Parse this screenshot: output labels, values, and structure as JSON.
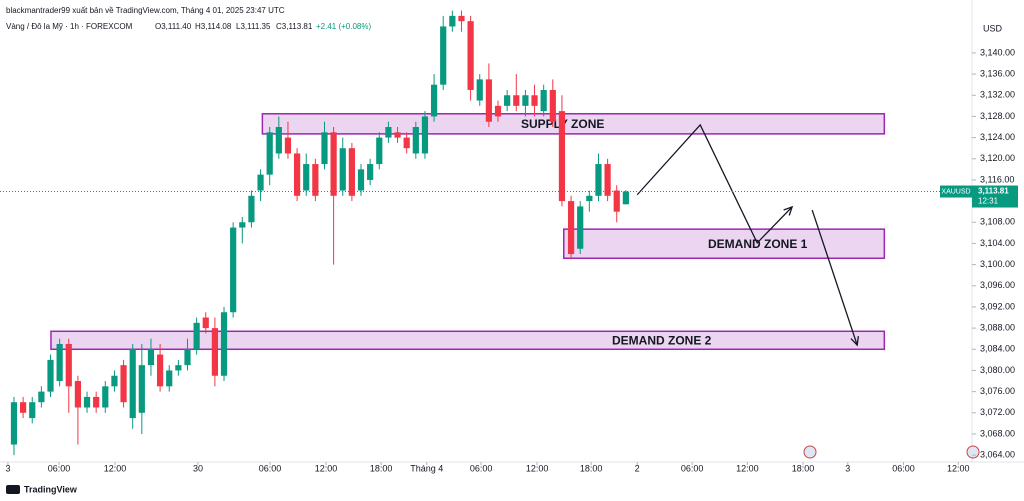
{
  "chart_data": {
    "type": "candlestick",
    "credit": "blackmantrader99 xuất bản về TradingView.com, Tháng 4 01, 2025 23:47 UTC",
    "symbol_title": "Vàng / Đô la Mỹ · 1h · FOREXCOM",
    "ohlc_labels": [
      "O3,111.40",
      "H3,114.08",
      "L3,111.35",
      "C3,113.81"
    ],
    "change_label": "+2.41 (+0.08%)",
    "currency": "USD",
    "brand": "TradingView",
    "symbol_label": "XAUUSD",
    "last": 3113.81,
    "last_label": "3,113.81",
    "countdown": "12:31",
    "up_color": "#089981",
    "down_color": "#f23645",
    "candles": [
      [
        3066,
        3075,
        3064,
        3074
      ],
      [
        3074,
        3075,
        3071,
        3072
      ],
      [
        3071,
        3075,
        3070,
        3074
      ],
      [
        3074,
        3077,
        3073,
        3076
      ],
      [
        3076,
        3083,
        3075,
        3082
      ],
      [
        3078,
        3086,
        3077,
        3085
      ],
      [
        3085,
        3086,
        3072,
        3077
      ],
      [
        3078,
        3079,
        3066,
        3073
      ],
      [
        3073,
        3076,
        3072,
        3075
      ],
      [
        3075,
        3076,
        3072,
        3073
      ],
      [
        3073,
        3078,
        3072,
        3077
      ],
      [
        3077,
        3080,
        3076,
        3079
      ],
      [
        3081,
        3082,
        3073,
        3074
      ],
      [
        3071,
        3085,
        3069,
        3084
      ],
      [
        3072,
        3085,
        3068,
        3081
      ],
      [
        3081,
        3086,
        3079,
        3084
      ],
      [
        3083,
        3085,
        3076,
        3077
      ],
      [
        3077,
        3081,
        3076,
        3080
      ],
      [
        3080,
        3082,
        3079,
        3081
      ],
      [
        3081,
        3086,
        3080,
        3084
      ],
      [
        3084,
        3090,
        3083,
        3089
      ],
      [
        3090,
        3091,
        3087,
        3088
      ],
      [
        3088,
        3090,
        3077,
        3079
      ],
      [
        3079,
        3092,
        3078,
        3091
      ],
      [
        3091,
        3108,
        3090,
        3107
      ],
      [
        3107,
        3109,
        3104,
        3108
      ],
      [
        3108,
        3114,
        3107,
        3113
      ],
      [
        3114,
        3118,
        3112,
        3117
      ],
      [
        3117,
        3126,
        3115,
        3125
      ],
      [
        3121,
        3128,
        3120,
        3126
      ],
      [
        3124,
        3127,
        3120,
        3121
      ],
      [
        3121,
        3122,
        3112,
        3113
      ],
      [
        3114,
        3121,
        3113,
        3119
      ],
      [
        3119,
        3120,
        3112,
        3113
      ],
      [
        3119,
        3127,
        3118,
        3125
      ],
      [
        3125,
        3126,
        3100,
        3113
      ],
      [
        3114,
        3124,
        3113,
        3122
      ],
      [
        3122,
        3123,
        3112,
        3113
      ],
      [
        3114,
        3119,
        3113,
        3118
      ],
      [
        3116,
        3120,
        3115,
        3119
      ],
      [
        3119,
        3125,
        3118,
        3124
      ],
      [
        3124,
        3127,
        3123,
        3126
      ],
      [
        3125,
        3126,
        3123,
        3124
      ],
      [
        3124,
        3125,
        3121,
        3122
      ],
      [
        3121,
        3127,
        3120,
        3126
      ],
      [
        3121,
        3129,
        3120,
        3128
      ],
      [
        3128,
        3136,
        3127,
        3134
      ],
      [
        3134,
        3147,
        3133,
        3145
      ],
      [
        3145,
        3148,
        3144,
        3147
      ],
      [
        3147,
        3148,
        3144,
        3146
      ],
      [
        3146,
        3147,
        3131,
        3133
      ],
      [
        3131,
        3136,
        3130,
        3135
      ],
      [
        3135,
        3138,
        3126,
        3127
      ],
      [
        3130,
        3131,
        3127,
        3128
      ],
      [
        3130,
        3133,
        3129,
        3132
      ],
      [
        3132,
        3136,
        3129,
        3130
      ],
      [
        3130,
        3133,
        3128,
        3132
      ],
      [
        3132,
        3134,
        3128,
        3130
      ],
      [
        3129,
        3134,
        3128,
        3133
      ],
      [
        3133,
        3135,
        3126,
        3127
      ],
      [
        3129,
        3132,
        3111,
        3112
      ],
      [
        3112,
        3113,
        3101,
        3102
      ],
      [
        3103,
        3112,
        3102,
        3111
      ],
      [
        3112,
        3114,
        3110,
        3113
      ],
      [
        3113,
        3121,
        3112,
        3119
      ],
      [
        3119,
        3120,
        3112,
        3113
      ],
      [
        3114,
        3115,
        3108,
        3110
      ],
      [
        3111.4,
        3114.08,
        3111.35,
        3113.81
      ]
    ],
    "zones": [
      {
        "label": "SUPPLY ZONE",
        "x": [
          27.2,
          95.3
        ],
        "y": [
          3124.7,
          3128.5
        ]
      },
      {
        "label": "DEMAND ZONE 1",
        "x": [
          60.2,
          95.3
        ],
        "y": [
          3101.2,
          3106.7
        ]
      },
      {
        "label": "DEMAND ZONE 2",
        "x": [
          4.05,
          95.3
        ],
        "y": [
          3084.0,
          3087.4
        ]
      }
    ],
    "arrows": [
      [
        [
          68.24,
          3113.2
        ],
        [
          75.14,
          3126.4
        ],
        [
          81.38,
          3104.1
        ],
        [
          85.2,
          3110.9
        ]
      ],
      [
        [
          87.4,
          3110.3
        ],
        [
          92.33,
          3084.8
        ]
      ]
    ],
    "xlim": [
      -1.53,
      104.9
    ],
    "xticks": [
      {
        "value": -0.66,
        "label": "3"
      },
      {
        "value": 4.93,
        "label": "06:00"
      },
      {
        "value": 11.06,
        "label": "12:00"
      },
      {
        "value": 20.15,
        "label": "30"
      },
      {
        "value": 28.04,
        "label": "06:00"
      },
      {
        "value": 34.17,
        "label": "12:00"
      },
      {
        "value": 40.2,
        "label": "18:00"
      },
      {
        "value": 45.2,
        "label": "Tháng 4"
      },
      {
        "value": 51.15,
        "label": "06:00"
      },
      {
        "value": 57.28,
        "label": "12:00"
      },
      {
        "value": 63.2,
        "label": "18:00"
      },
      {
        "value": 68.24,
        "label": "2"
      },
      {
        "value": 74.26,
        "label": "06:00"
      },
      {
        "value": 80.3,
        "label": "12:00"
      },
      {
        "value": 86.4,
        "label": "18:00"
      },
      {
        "value": 91.3,
        "label": "3"
      },
      {
        "value": 97.4,
        "label": "06:00"
      },
      {
        "value": 103.4,
        "label": "12:00"
      }
    ],
    "ylim": [
      3062.7,
      3150
    ],
    "yticks": [
      {
        "value": 3064,
        "label": "3,064.00"
      },
      {
        "value": 3068,
        "label": "3,068.00"
      },
      {
        "value": 3072,
        "label": "3,072.00"
      },
      {
        "value": 3076,
        "label": "3,076.00"
      },
      {
        "value": 3080,
        "label": "3,080.00"
      },
      {
        "value": 3084,
        "label": "3,084.00"
      },
      {
        "value": 3088,
        "label": "3,088.00"
      },
      {
        "value": 3092,
        "label": "3,092.00"
      },
      {
        "value": 3096,
        "label": "3,096.00"
      },
      {
        "value": 3100,
        "label": "3,100.00"
      },
      {
        "value": 3104,
        "label": "3,104.00"
      },
      {
        "value": 3108,
        "label": "3,108.00"
      },
      {
        "value": 3112,
        "label": "3,112.00"
      },
      {
        "value": 3116,
        "label": "3,116.00"
      },
      {
        "value": 3120,
        "label": "3,120.00"
      },
      {
        "value": 3124,
        "label": "3,124.00"
      },
      {
        "value": 3128,
        "label": "3,128.00"
      },
      {
        "value": 3132,
        "label": "3,132.00"
      },
      {
        "value": 3136,
        "label": "3,136.00"
      },
      {
        "value": 3140,
        "label": "3,140.00"
      }
    ]
  }
}
